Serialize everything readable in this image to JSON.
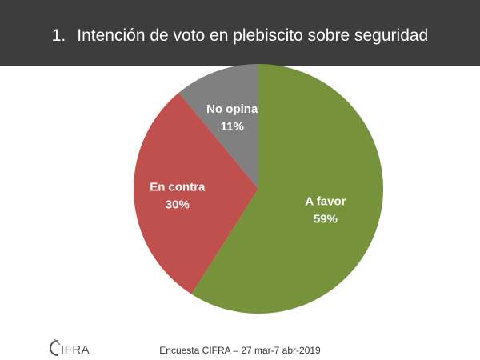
{
  "header": {
    "number": "1.",
    "title": "Intención de voto en plebiscito sobre seguridad"
  },
  "chart_data": {
    "type": "pie",
    "slices": [
      {
        "name": "A favor",
        "value": 59,
        "label": "59%",
        "color": "#76933c"
      },
      {
        "name": "En contra",
        "value": 30,
        "label": "30%",
        "color": "#c0504d"
      },
      {
        "name": "No opina",
        "value": 11,
        "label": "11%",
        "color": "#808080"
      }
    ],
    "start": "12 o'clock",
    "direction": "clockwise",
    "legend": "none"
  },
  "footer": {
    "source": "Encuesta CIFRA – 27 mar-7 abr-2019"
  },
  "logo": {
    "text": "CIFRA",
    "color": "#555555"
  }
}
